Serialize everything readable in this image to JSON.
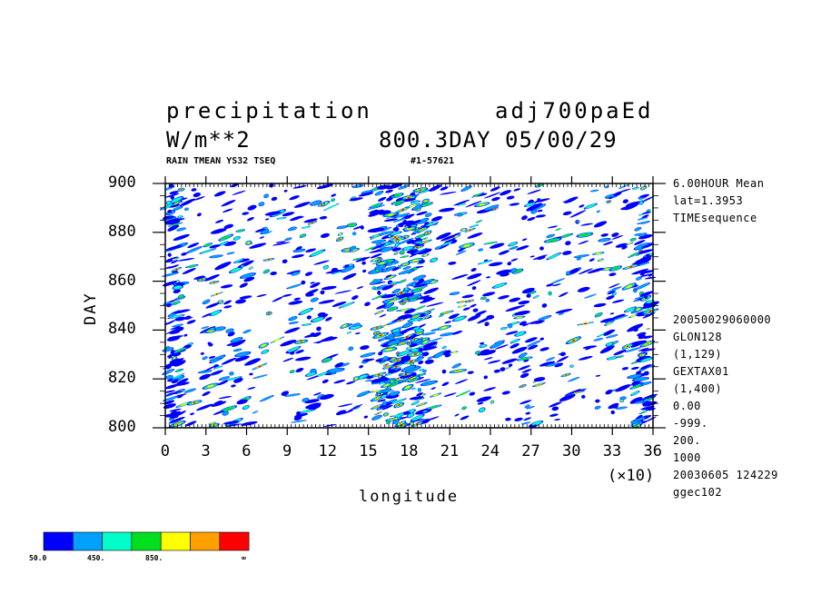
{
  "header": {
    "var_name": "precipitation",
    "experiment": "adj700paEd",
    "units": "W/m**2",
    "time_info": "800.3DAY 05/00/29",
    "subtitle_left": "RAIN TMEAN YS32 TSEQ",
    "subtitle_right": "#1-57621"
  },
  "side_info": {
    "top": [
      "6.00HOUR Mean",
      "lat=1.3953",
      "TIMEsequence"
    ],
    "bottom": [
      "20050029060000",
      "GLON128",
      "(1,129)",
      "GEXTAX01",
      "(1,400)",
      "0.00",
      "-999.",
      "200.",
      "1000",
      "20030605 124229",
      "ggec102"
    ]
  },
  "colorbar": {
    "colors": [
      "#0000ff",
      "#00a0ff",
      "#00ffc8",
      "#00e020",
      "#ffff00",
      "#ffa000",
      "#ff0000"
    ],
    "labels": [
      "50.0",
      "450.",
      "850.",
      "∞"
    ]
  },
  "chart_data": {
    "type": "heatmap",
    "xlabel": "longitude",
    "ylabel": "DAY",
    "x_multiplier_label": "(×10)",
    "xlim": [
      0,
      36
    ],
    "ylim": [
      800,
      900
    ],
    "x_ticks": [
      0,
      3,
      6,
      9,
      12,
      15,
      18,
      21,
      24,
      27,
      30,
      33,
      36
    ],
    "y_ticks": [
      800,
      820,
      840,
      860,
      880,
      900
    ],
    "contour_levels": [
      50,
      250,
      450,
      650,
      850,
      1050,
      1250
    ],
    "description": "Hovmoller diagram of precipitation: scattered westward-propagating rain streaks, densest near longitude 16-19 (x10)"
  }
}
